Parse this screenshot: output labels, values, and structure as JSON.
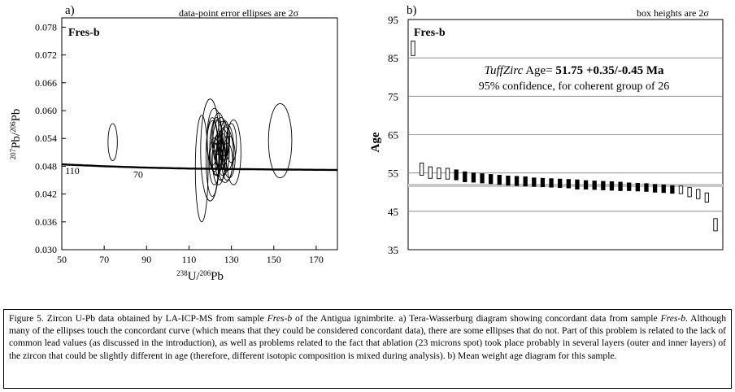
{
  "chart_data": [
    {
      "type": "scatter",
      "panel_label": "a)",
      "note": "data-point error ellipses are 2σ",
      "sample_label": "Fres-b",
      "xlabel_parts": [
        "238",
        "U/",
        "206",
        "Pb"
      ],
      "ylabel_parts": [
        "207",
        "Pb/",
        "206",
        "Pb"
      ],
      "xlim": [
        50,
        180
      ],
      "ylim": [
        0.03,
        0.08
      ],
      "xticks": [
        50,
        70,
        90,
        110,
        130,
        150,
        170
      ],
      "yticks": [
        0.03,
        0.036,
        0.042,
        0.048,
        0.054,
        0.06,
        0.066,
        0.072,
        0.078
      ],
      "ytick_labels": [
        "0.030",
        "0.036",
        "0.042",
        "0.048",
        "0.054",
        "0.060",
        "0.066",
        "0.072",
        "0.078"
      ],
      "concordia": {
        "points": [
          [
            50,
            0.0484
          ],
          [
            70,
            0.048
          ],
          [
            90,
            0.0477
          ],
          [
            110,
            0.0475
          ],
          [
            130,
            0.0474
          ],
          [
            150,
            0.0473
          ],
          [
            180,
            0.0472
          ]
        ],
        "age_labels": [
          {
            "text": "110",
            "x": 55,
            "y": 0.047
          },
          {
            "text": "70",
            "x": 86,
            "y": 0.0462
          }
        ]
      },
      "ellipses": [
        {
          "x": 74,
          "y": 0.0532,
          "rx": 2.2,
          "ry": 0.004
        },
        {
          "x": 116,
          "y": 0.0475,
          "rx": 3.0,
          "ry": 0.0115
        },
        {
          "x": 120,
          "y": 0.0515,
          "rx": 4.5,
          "ry": 0.011
        },
        {
          "x": 121,
          "y": 0.05,
          "rx": 3.0,
          "ry": 0.0085
        },
        {
          "x": 122,
          "y": 0.054,
          "rx": 3.5,
          "ry": 0.0065
        },
        {
          "x": 123,
          "y": 0.052,
          "rx": 3.2,
          "ry": 0.006
        },
        {
          "x": 124,
          "y": 0.0495,
          "rx": 3.0,
          "ry": 0.0055
        },
        {
          "x": 125,
          "y": 0.053,
          "rx": 3.8,
          "ry": 0.0055
        },
        {
          "x": 126,
          "y": 0.051,
          "rx": 3.0,
          "ry": 0.005
        },
        {
          "x": 124,
          "y": 0.055,
          "rx": 2.8,
          "ry": 0.0045
        },
        {
          "x": 127,
          "y": 0.0505,
          "rx": 4.0,
          "ry": 0.006
        },
        {
          "x": 122,
          "y": 0.0485,
          "rx": 2.5,
          "ry": 0.0045
        },
        {
          "x": 128,
          "y": 0.052,
          "rx": 3.0,
          "ry": 0.005
        },
        {
          "x": 125,
          "y": 0.049,
          "rx": 2.6,
          "ry": 0.004
        },
        {
          "x": 123,
          "y": 0.0545,
          "rx": 2.4,
          "ry": 0.004
        },
        {
          "x": 126,
          "y": 0.0535,
          "rx": 2.7,
          "ry": 0.0042
        },
        {
          "x": 129,
          "y": 0.05,
          "rx": 2.8,
          "ry": 0.0045
        },
        {
          "x": 121,
          "y": 0.053,
          "rx": 2.5,
          "ry": 0.0048
        },
        {
          "x": 124,
          "y": 0.0515,
          "rx": 2.0,
          "ry": 0.0035
        },
        {
          "x": 127,
          "y": 0.054,
          "rx": 2.2,
          "ry": 0.0038
        },
        {
          "x": 128,
          "y": 0.049,
          "rx": 2.6,
          "ry": 0.004
        },
        {
          "x": 125,
          "y": 0.0505,
          "rx": 2.2,
          "ry": 0.0032
        },
        {
          "x": 122,
          "y": 0.0505,
          "rx": 2.4,
          "ry": 0.0036
        },
        {
          "x": 130,
          "y": 0.053,
          "rx": 2.4,
          "ry": 0.0042
        },
        {
          "x": 126,
          "y": 0.052,
          "rx": 2.0,
          "ry": 0.003
        },
        {
          "x": 123,
          "y": 0.0495,
          "rx": 2.2,
          "ry": 0.0034
        },
        {
          "x": 131,
          "y": 0.051,
          "rx": 3.5,
          "ry": 0.007
        },
        {
          "x": 153,
          "y": 0.0535,
          "rx": 5.5,
          "ry": 0.008
        }
      ]
    },
    {
      "type": "bar",
      "panel_label": "b)",
      "note": "box heights are 2σ",
      "sample_label": "Fres-b",
      "ylabel": "Age",
      "ylim": [
        35,
        95
      ],
      "yticks": [
        35,
        45,
        55,
        65,
        75,
        85,
        95
      ],
      "mean_age": 51.75,
      "annotation_prefix": "TuffZirc",
      "annotation_mid": " Age= ",
      "annotation_value": "51.75 +0.35/-0.45 Ma",
      "annotation_line2": "95% confidence, for coherent group of 26",
      "boxes": [
        {
          "center": 87.5,
          "half": 1.9,
          "included": false
        },
        {
          "center": 56.0,
          "half": 1.6,
          "included": false
        },
        {
          "center": 55.1,
          "half": 1.5,
          "included": false
        },
        {
          "center": 54.9,
          "half": 1.4,
          "included": false
        },
        {
          "center": 54.8,
          "half": 1.4,
          "included": false
        },
        {
          "center": 54.5,
          "half": 1.3,
          "included": true
        },
        {
          "center": 54.0,
          "half": 1.3,
          "included": true
        },
        {
          "center": 53.8,
          "half": 1.2,
          "included": true
        },
        {
          "center": 53.6,
          "half": 1.2,
          "included": true
        },
        {
          "center": 53.4,
          "half": 1.2,
          "included": true
        },
        {
          "center": 53.2,
          "half": 1.2,
          "included": true
        },
        {
          "center": 53.0,
          "half": 1.2,
          "included": true
        },
        {
          "center": 52.9,
          "half": 1.2,
          "included": true
        },
        {
          "center": 52.8,
          "half": 1.2,
          "included": true
        },
        {
          "center": 52.6,
          "half": 1.1,
          "included": true
        },
        {
          "center": 52.5,
          "half": 1.1,
          "included": true
        },
        {
          "center": 52.4,
          "half": 1.1,
          "included": true
        },
        {
          "center": 52.3,
          "half": 1.1,
          "included": true
        },
        {
          "center": 52.2,
          "half": 1.1,
          "included": true
        },
        {
          "center": 52.0,
          "half": 1.2,
          "included": true
        },
        {
          "center": 51.9,
          "half": 1.1,
          "included": true
        },
        {
          "center": 51.8,
          "half": 1.1,
          "included": true
        },
        {
          "center": 51.7,
          "half": 1.1,
          "included": true
        },
        {
          "center": 51.6,
          "half": 1.1,
          "included": true
        },
        {
          "center": 51.5,
          "half": 1.1,
          "included": true
        },
        {
          "center": 51.4,
          "half": 1.0,
          "included": true
        },
        {
          "center": 51.3,
          "half": 1.0,
          "included": true
        },
        {
          "center": 51.2,
          "half": 1.0,
          "included": true
        },
        {
          "center": 51.0,
          "half": 1.0,
          "included": true
        },
        {
          "center": 50.9,
          "half": 1.0,
          "included": true
        },
        {
          "center": 50.7,
          "half": 1.0,
          "included": true
        },
        {
          "center": 50.6,
          "half": 1.0,
          "included": false
        },
        {
          "center": 50.0,
          "half": 1.2,
          "included": false
        },
        {
          "center": 49.5,
          "half": 1.2,
          "included": false
        },
        {
          "center": 48.6,
          "half": 1.2,
          "included": false
        },
        {
          "center": 41.5,
          "half": 1.6,
          "included": false
        }
      ]
    }
  ],
  "caption": {
    "t1": "Figure 5. Zircon U-Pb data obtained by LA-ICP-MS from sample ",
    "i1": "Fres-b",
    "t2": " of the Antigua ignimbrite. a) Tera-Wasserburg diagram showing concordant data from sample ",
    "i2": "Fres-b",
    "t3": ". Although many of the ellipses touch the concordant curve (which means that they could be considered concordant data), there are some ellipses that do not. Part of this problem is related to the lack of common lead values (as discussed in the introduction), as well as problems related to the fact that ablation (23 microns spot) took place probably in several layers (outer and inner layers) of the zircon that could be slightly different in age (therefore, different isotopic composition is mixed during analysis). b) Mean weight age diagram for this sample."
  }
}
